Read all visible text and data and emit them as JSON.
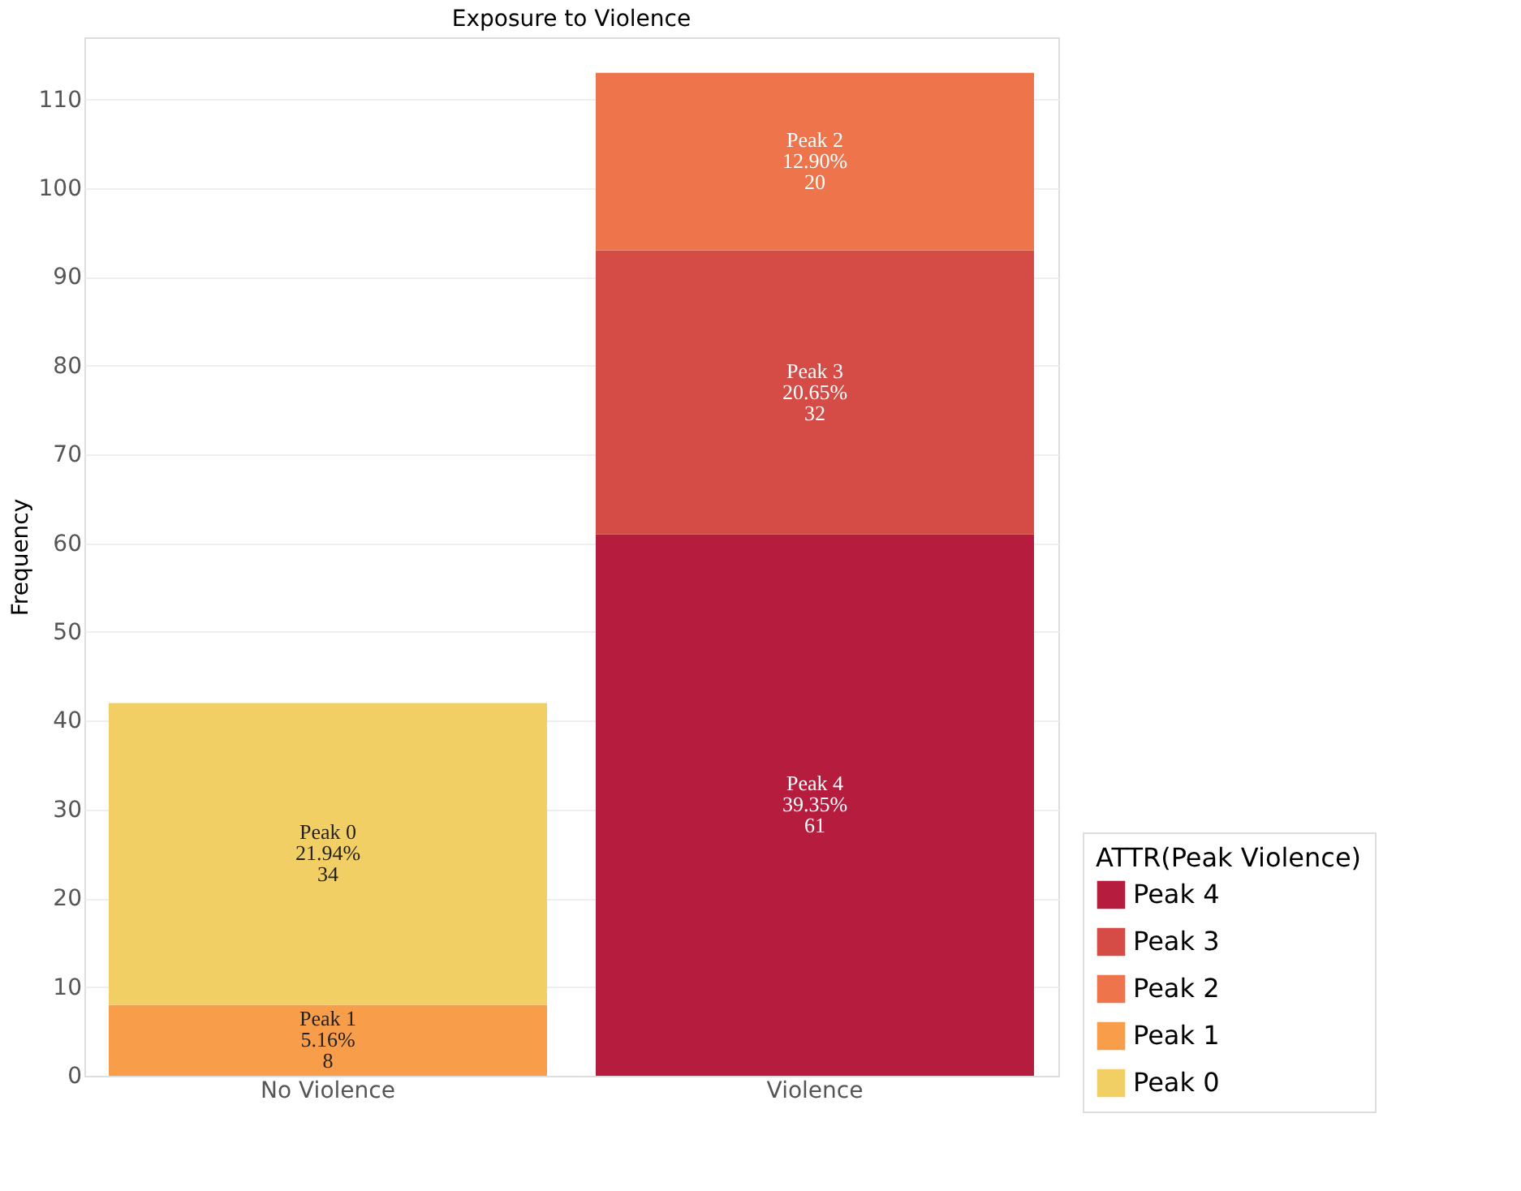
{
  "chart_data": {
    "type": "bar",
    "title": "Exposure to Violence",
    "ylabel": "Frequency",
    "legend_title": "ATTR(Peak Violence)",
    "categories": [
      "No Violence",
      "Violence"
    ],
    "stacked": true,
    "series": [
      {
        "name": "Peak 4",
        "color": "#b61c3e",
        "values": [
          null,
          61
        ],
        "value_labels": [
          null,
          "Peak 4\n39.35%\n61"
        ]
      },
      {
        "name": "Peak 3",
        "color": "#d54b45",
        "values": [
          null,
          32
        ],
        "value_labels": [
          null,
          "Peak 3\n20.65%\n32"
        ]
      },
      {
        "name": "Peak 2",
        "color": "#ee744c",
        "values": [
          null,
          20
        ],
        "value_labels": [
          null,
          "Peak 2\n12.90%\n20"
        ]
      },
      {
        "name": "Peak 1",
        "color": "#f89d4a",
        "values": [
          8,
          null
        ],
        "value_labels": [
          "Peak 1\n5.16%\n8",
          null
        ]
      },
      {
        "name": "Peak 0",
        "color": "#f2cf65",
        "values": [
          34,
          null
        ],
        "value_labels": [
          "Peak 0\n21.94%\n34",
          null
        ]
      }
    ],
    "ylim": [
      0,
      117
    ],
    "yticks": [
      0,
      10,
      20,
      30,
      40,
      50,
      60,
      70,
      80,
      90,
      100,
      110
    ],
    "grid": "y",
    "legend": "bottom right"
  }
}
